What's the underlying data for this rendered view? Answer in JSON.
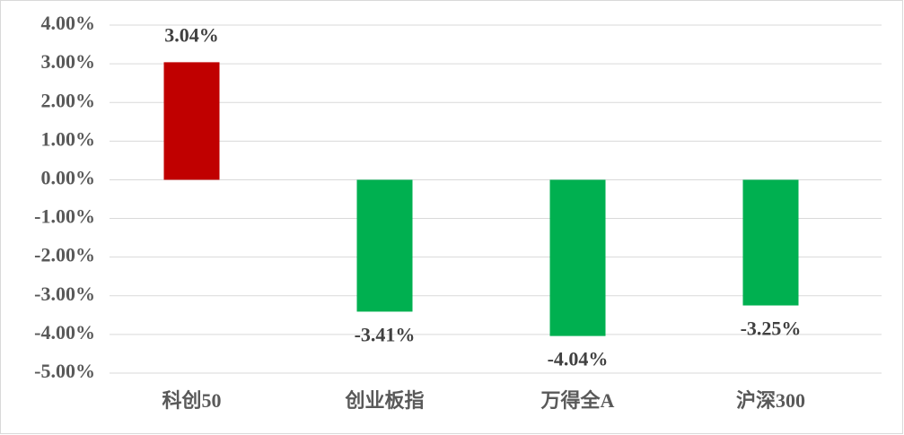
{
  "chart_data": {
    "type": "bar",
    "categories": [
      "科创50",
      "创业板指",
      "万得全A",
      "沪深300"
    ],
    "values": [
      3.04,
      -3.41,
      -4.04,
      -3.25
    ],
    "value_labels": [
      "3.04%",
      "-3.41%",
      "-4.04%",
      "-3.25%"
    ],
    "colors": [
      "#c00000",
      "#00b050",
      "#00b050",
      "#00b050"
    ],
    "ylim": [
      -5,
      4
    ],
    "yticks": [
      {
        "value": 4,
        "label": "4.00%"
      },
      {
        "value": 3,
        "label": "3.00%"
      },
      {
        "value": 2,
        "label": "2.00%"
      },
      {
        "value": 1,
        "label": "1.00%"
      },
      {
        "value": 0,
        "label": "0.00%"
      },
      {
        "value": -1,
        "label": "-1.00%"
      },
      {
        "value": -2,
        "label": "-2.00%"
      },
      {
        "value": -3,
        "label": "-3.00%"
      },
      {
        "value": -4,
        "label": "-4.00%"
      },
      {
        "value": -5,
        "label": "-5.00%"
      }
    ],
    "grid": true
  }
}
